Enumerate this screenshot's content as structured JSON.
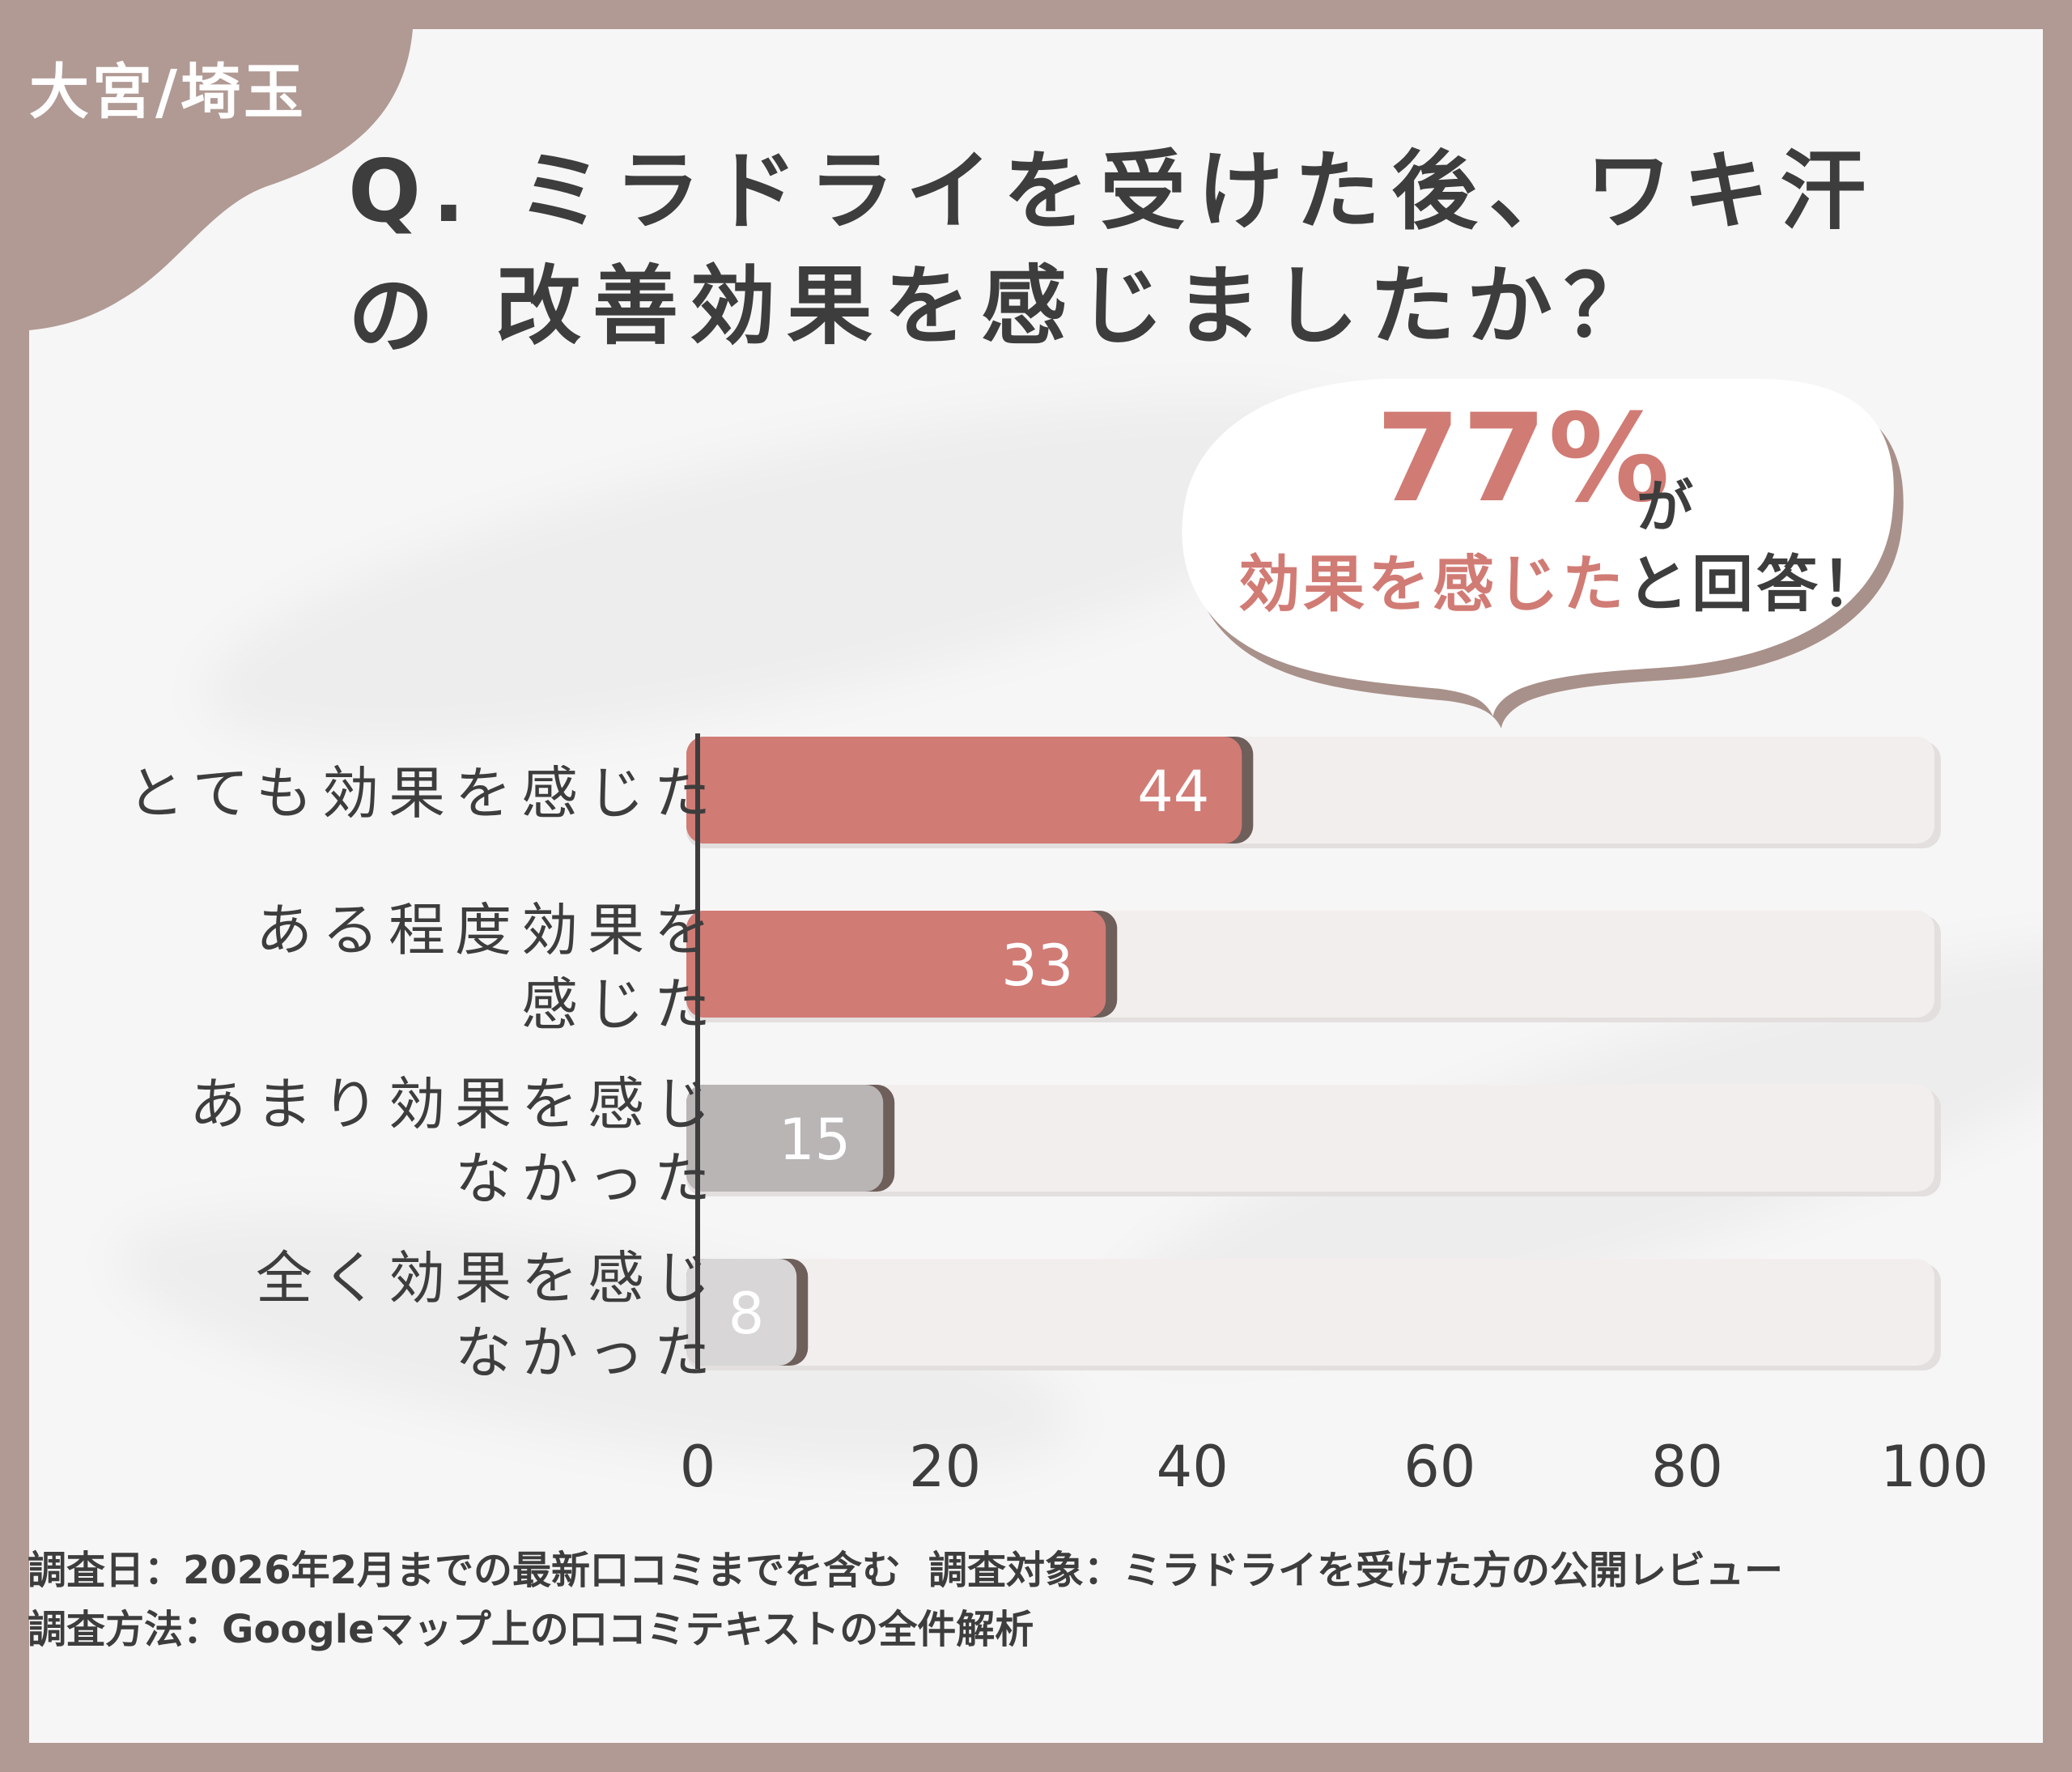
{
  "region_tag": "大宮/埼玉",
  "title_line1": "Q. ミラドライを受けた後、ワキ汗の",
  "title_line2": "改善効果を感じましたか？",
  "callout": {
    "percent": "77%",
    "percent_suffix": "が",
    "highlight": "効果を感じた",
    "rest": "と回答！"
  },
  "chart_data": {
    "type": "bar",
    "orientation": "horizontal",
    "categories": [
      "とても効果を感じた",
      "ある程度効果を\n感じた",
      "あまり効果を感じ\nなかった",
      "全く効果を感じ\nなかった"
    ],
    "values": [
      44,
      33,
      15,
      8
    ],
    "xlim": [
      0,
      100
    ],
    "xticks": [
      0,
      20,
      40,
      60,
      80,
      100
    ],
    "bar_colors": [
      "#d17b75",
      "#d17b75",
      "#b8b5b4",
      "#d8d6d6"
    ],
    "track_color": "#f1eeed",
    "grid": false
  },
  "notes": {
    "date": "調査日：2026年2月までの最新口コミまでを含む",
    "target": "調査対象：ミラドライを受けた方の公開レビュー",
    "method": "調査方法：Googleマップ上の口コミテキストの全件解析"
  },
  "colors": {
    "frame": "#b09a93",
    "card": "#f7f6f6",
    "accent": "#d17b75",
    "text": "#3d3d3d"
  }
}
